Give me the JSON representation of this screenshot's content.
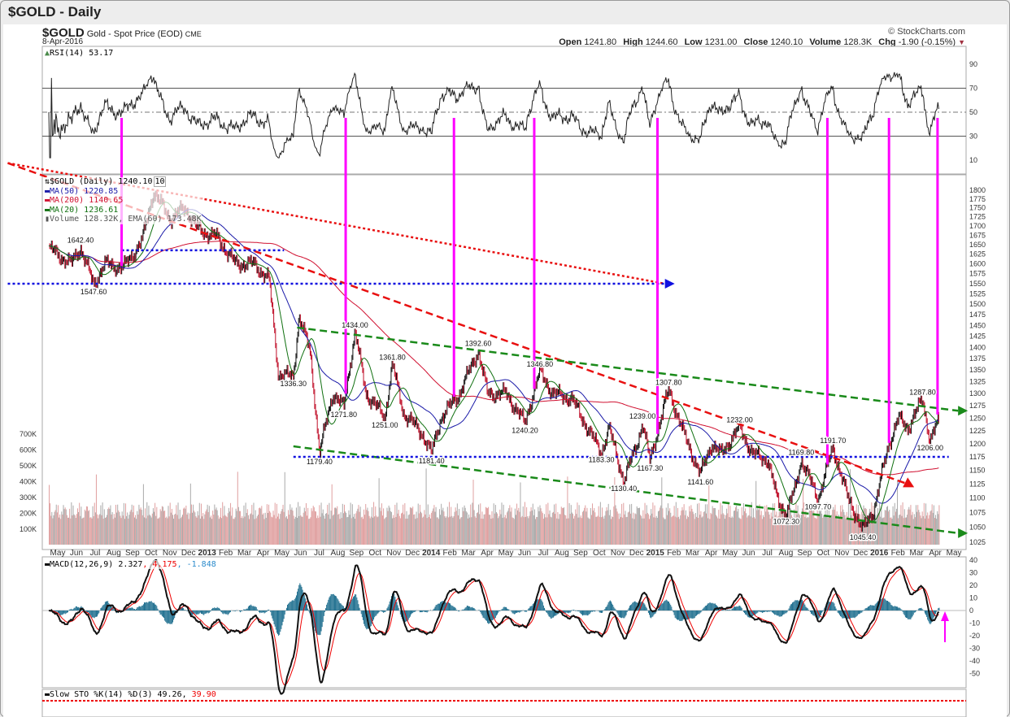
{
  "window": {
    "title": "$GOLD - Daily"
  },
  "header": {
    "symbol": "$GOLD",
    "name": "Gold - Spot Price (EOD)",
    "exchange": "CME",
    "date": "8-Apr-2016",
    "copyright": "© StockCharts.com",
    "open_label": "Open",
    "open": "1241.80",
    "high_label": "High",
    "high": "1244.60",
    "low_label": "Low",
    "low": "1231.00",
    "close_label": "Close",
    "close": "1240.10",
    "volume_label": "Volume",
    "volume": "128.3K",
    "chg_label": "Chg",
    "chg": "-1.90 (-0.15%)"
  },
  "legends": {
    "rsi": "RSI(14) 53.17",
    "price": "$GOLD (Daily) 1240.10",
    "price_tag": "10",
    "ma50": "MA(50) 1220.85",
    "ma200": "MA(200) 1140.65",
    "ma20": "MA(20) 1236.61",
    "volume": "Volume 128.32K, EMA(60) 173.48K",
    "macd": "MACD(12,26,9) 2.327",
    "macd_signal": "4.175",
    "macd_hist": "-1.848",
    "sto": "Slow STO %K(14) %D(3) 49.26,",
    "sto_d": "39.90"
  },
  "colors": {
    "ma50": "#1a1aa8",
    "ma200": "#d01030",
    "ma20": "#107010",
    "up": "#111111",
    "down": "#c0102a",
    "volume": "#aaaaaa",
    "trend_red": "#e81010",
    "trend_green": "#1a8a1a",
    "support_blue": "#1010e0",
    "magenta": "#ff00ff",
    "macd_hist": "#1f6f8f"
  },
  "chart_data": {
    "type": "candlestick",
    "title": "$GOLD - Daily",
    "x_axis": {
      "labels": [
        "May",
        "Jun",
        "Jul",
        "Aug",
        "Sep",
        "Oct",
        "Nov",
        "Dec",
        "2013",
        "Feb",
        "Mar",
        "Apr",
        "May",
        "Jun",
        "Jul",
        "Aug",
        "Sep",
        "Oct",
        "Nov",
        "Dec",
        "2014",
        "Feb",
        "Mar",
        "Apr",
        "May",
        "Jun",
        "Jul",
        "Aug",
        "Sep",
        "Oct",
        "Nov",
        "Dec",
        "2015",
        "Feb",
        "Mar",
        "Apr",
        "May",
        "Jun",
        "Jul",
        "Aug",
        "Sep",
        "Oct",
        "Nov",
        "Dec",
        "2016",
        "Feb",
        "Mar",
        "Apr",
        "May"
      ]
    },
    "price_axis": {
      "min": 1025,
      "max": 1800,
      "step": 25,
      "scale": "log"
    },
    "volume_axis": {
      "labels": [
        "100K",
        "200K",
        "300K",
        "400K",
        "500K",
        "600K",
        "700K"
      ]
    },
    "rsi_axis": {
      "ticks": [
        90,
        70,
        50,
        30,
        10
      ]
    },
    "macd_axis": {
      "ticks": [
        40,
        30,
        20,
        10,
        0,
        -10,
        -20,
        -30,
        -40,
        -50
      ]
    },
    "price_path_month_index": [
      [
        0,
        1640
      ],
      [
        1.2,
        1600
      ],
      [
        1.7,
        1642
      ],
      [
        2.4,
        1548
      ],
      [
        3,
        1600
      ],
      [
        4,
        1590
      ],
      [
        5,
        1660
      ],
      [
        5.6,
        1795
      ],
      [
        6.5,
        1720
      ],
      [
        7.3,
        1750
      ],
      [
        8,
        1690
      ],
      [
        9,
        1670
      ],
      [
        10,
        1600
      ],
      [
        11,
        1600
      ],
      [
        11.8,
        1560
      ],
      [
        12.3,
        1340
      ],
      [
        13.1,
        1336
      ],
      [
        13.4,
        1470
      ],
      [
        14,
        1390
      ],
      [
        14.5,
        1180
      ],
      [
        15.2,
        1300
      ],
      [
        15.8,
        1272
      ],
      [
        16.4,
        1434
      ],
      [
        17,
        1300
      ],
      [
        18,
        1251
      ],
      [
        18.4,
        1362
      ],
      [
        19,
        1260
      ],
      [
        20,
        1220
      ],
      [
        20.5,
        1181
      ],
      [
        21,
        1250
      ],
      [
        22,
        1300
      ],
      [
        23,
        1392
      ],
      [
        23.5,
        1300
      ],
      [
        24.5,
        1300
      ],
      [
        25.5,
        1240
      ],
      [
        26.3,
        1347
      ],
      [
        27,
        1300
      ],
      [
        28,
        1290
      ],
      [
        29,
        1220
      ],
      [
        29.6,
        1183
      ],
      [
        30,
        1230
      ],
      [
        30.8,
        1130
      ],
      [
        31.5,
        1200
      ],
      [
        31.8,
        1239
      ],
      [
        32.2,
        1167
      ],
      [
        33.2,
        1308
      ],
      [
        34,
        1220
      ],
      [
        34.9,
        1142
      ],
      [
        35.5,
        1200
      ],
      [
        36,
        1180
      ],
      [
        37,
        1232
      ],
      [
        37.7,
        1180
      ],
      [
        38.5,
        1170
      ],
      [
        39,
        1100
      ],
      [
        39.5,
        1072
      ],
      [
        40,
        1120
      ],
      [
        40.3,
        1170
      ],
      [
        41.2,
        1098
      ],
      [
        42,
        1192
      ],
      [
        42.8,
        1100
      ],
      [
        43.6,
        1045
      ],
      [
        44.2,
        1080
      ],
      [
        45,
        1200
      ],
      [
        45.5,
        1250
      ],
      [
        46,
        1230
      ],
      [
        46.8,
        1288
      ],
      [
        47.2,
        1206
      ],
      [
        47.6,
        1240
      ]
    ],
    "annotations": [
      {
        "text": "1642.40",
        "m": 1.7,
        "p": 1642.4,
        "pos": "above"
      },
      {
        "text": "1547.60",
        "m": 2.4,
        "p": 1547.6,
        "pos": "below"
      },
      {
        "text": "1434.00",
        "m": 16.4,
        "p": 1434,
        "pos": "above"
      },
      {
        "text": "1392.60",
        "m": 23,
        "p": 1392.6,
        "pos": "above"
      },
      {
        "text": "1361.80",
        "m": 18.4,
        "p": 1361.8,
        "pos": "above"
      },
      {
        "text": "1346.80",
        "m": 26.3,
        "p": 1346.8,
        "pos": "above"
      },
      {
        "text": "1336.30",
        "m": 13.1,
        "p": 1336.3,
        "pos": "below"
      },
      {
        "text": "1307.80",
        "m": 33.2,
        "p": 1307.8,
        "pos": "above"
      },
      {
        "text": "1287.80",
        "m": 46.8,
        "p": 1287.8,
        "pos": "above"
      },
      {
        "text": "1271.80",
        "m": 15.8,
        "p": 1271.8,
        "pos": "below"
      },
      {
        "text": "1251.00",
        "m": 18,
        "p": 1251,
        "pos": "below"
      },
      {
        "text": "1240.20",
        "m": 25.5,
        "p": 1240.2,
        "pos": "below"
      },
      {
        "text": "1239.00",
        "m": 31.8,
        "p": 1239,
        "pos": "above"
      },
      {
        "text": "1232.00",
        "m": 37,
        "p": 1232,
        "pos": "above"
      },
      {
        "text": "1206.00",
        "m": 47.2,
        "p": 1206,
        "pos": "below"
      },
      {
        "text": "1191.70",
        "m": 42,
        "p": 1191.7,
        "pos": "above"
      },
      {
        "text": "1183.30",
        "m": 29.6,
        "p": 1183.3,
        "pos": "below"
      },
      {
        "text": "1181.40",
        "m": 20.5,
        "p": 1181.4,
        "pos": "below"
      },
      {
        "text": "1179.40",
        "m": 14.5,
        "p": 1179.4,
        "pos": "below"
      },
      {
        "text": "1169.80",
        "m": 40.3,
        "p": 1169.8,
        "pos": "above"
      },
      {
        "text": "1167.30",
        "m": 32.2,
        "p": 1167.3,
        "pos": "below"
      },
      {
        "text": "1141.60",
        "m": 34.9,
        "p": 1141.6,
        "pos": "below"
      },
      {
        "text": "1130.40",
        "m": 30.8,
        "p": 1130.4,
        "pos": "below"
      },
      {
        "text": "1097.70",
        "m": 41.2,
        "p": 1097.7,
        "pos": "below"
      },
      {
        "text": "1072.30",
        "m": 39.5,
        "p": 1072.3,
        "pos": "below"
      },
      {
        "text": "1045.40",
        "m": 43.6,
        "p": 1045.4,
        "pos": "below"
      }
    ],
    "trendlines": [
      {
        "name": "red-dotted-resistance",
        "color": "#e81010",
        "style": "dotted",
        "from": [
          -2.2,
          1880
        ],
        "to": [
          33,
          1550
        ]
      },
      {
        "name": "red-dashed-resistance",
        "color": "#e81010",
        "style": "dashed",
        "from": [
          -2.2,
          1880
        ],
        "to": [
          46,
          1125
        ]
      },
      {
        "name": "green-upper-channel",
        "color": "#1a8a1a",
        "style": "dashed",
        "from": [
          13.3,
          1445
        ],
        "to": [
          48.7,
          1265
        ]
      },
      {
        "name": "green-lower-channel",
        "color": "#1a8a1a",
        "style": "dashed",
        "from": [
          13.1,
          1195
        ],
        "to": [
          48.7,
          1040
        ]
      },
      {
        "name": "blue-support-1550",
        "color": "#1010e0",
        "style": "dotted",
        "from": [
          -2.2,
          1550
        ],
        "to": [
          33,
          1550
        ]
      },
      {
        "name": "blue-support-1175",
        "color": "#1010e0",
        "style": "dotted",
        "from": [
          13.1,
          1175
        ],
        "to": [
          48.2,
          1175
        ]
      },
      {
        "name": "blue-support-1635",
        "color": "#1010e0",
        "style": "dotted",
        "from": [
          3.9,
          1635
        ],
        "to": [
          12.6,
          1635
        ]
      }
    ],
    "magenta_markers_month": [
      3.9,
      15.9,
      21.7,
      26.0,
      32.6,
      41.7,
      45.0,
      47.6
    ]
  }
}
